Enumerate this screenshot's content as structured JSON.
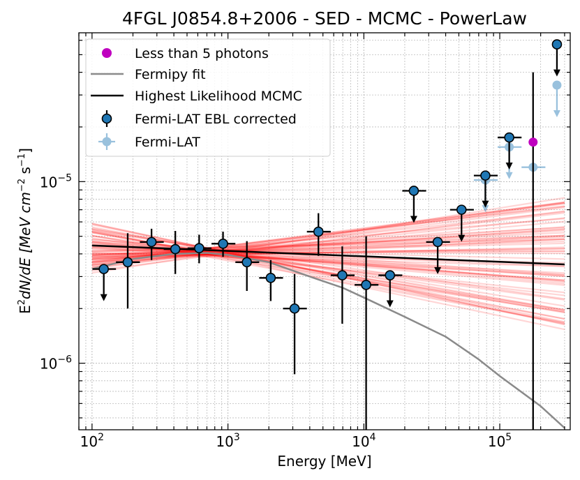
{
  "chart_data": {
    "type": "scatter",
    "title": "4FGL J0854.8+2006 - SED - MCMC - PowerLaw",
    "xlabel": "Energy [MeV]",
    "ylabel_main": "E",
    "ylabel_sup1": "2",
    "ylabel_mid": "dN/dE [MeV cm",
    "ylabel_sup2": "−2",
    "ylabel_mid2": " s",
    "ylabel_sup3": "−1",
    "ylabel_end": "]",
    "xscale": "log",
    "yscale": "log",
    "xlim": [
      80,
      330000
    ],
    "ylim": [
      4.3e-07,
      6.6e-05
    ],
    "x_ticks": [
      {
        "value": 100,
        "base": "10",
        "exp": "2"
      },
      {
        "value": 1000,
        "base": "10",
        "exp": "3"
      },
      {
        "value": 10000,
        "base": "10",
        "exp": "4"
      },
      {
        "value": 100000,
        "base": "10",
        "exp": "5"
      }
    ],
    "y_ticks": [
      {
        "value": 1e-06,
        "base": "10",
        "exp": "−6"
      },
      {
        "value": 1e-05,
        "base": "10",
        "exp": "−5"
      }
    ],
    "grid": true,
    "legend": {
      "position": "top-left",
      "entries": [
        {
          "label": "Less than 5 photons",
          "kind": "dot",
          "color": "#bf00bf"
        },
        {
          "label": "Fermipy fit",
          "kind": "line",
          "color": "#8a8a8a"
        },
        {
          "label": "Highest Likelihood MCMC",
          "kind": "line",
          "color": "#000000"
        },
        {
          "label": "Fermi-LAT EBL corrected",
          "kind": "errpoint",
          "color": "#1f77b4"
        },
        {
          "label": "Fermi-LAT",
          "kind": "errpoint_faded",
          "color": "#1f77b4"
        }
      ]
    },
    "colors": {
      "point_fill": "#1f77b4",
      "faded_point": "#7fb2dc",
      "mcmc_samples": "#ff0000",
      "fermipy": "#8a8a8a",
      "best_fit": "#000000",
      "low_photons": "#bf00bf"
    },
    "series": [
      {
        "name": "Fermi-LAT EBL corrected",
        "points": [
          {
            "x": 122,
            "y": 3.3e-06,
            "xlo": 101,
            "xhi": 150,
            "upper_limit": true
          },
          {
            "x": 183,
            "y": 3.6e-06,
            "xlo": 150,
            "xhi": 225,
            "ylo": 2e-06,
            "yhi": 5.2e-06
          },
          {
            "x": 274,
            "y": 4.65e-06,
            "xlo": 225,
            "xhi": 337,
            "ylo": 3.7e-06,
            "yhi": 5.5e-06
          },
          {
            "x": 410,
            "y": 4.25e-06,
            "xlo": 337,
            "xhi": 505,
            "ylo": 3.1e-06,
            "yhi": 5.35e-06
          },
          {
            "x": 614,
            "y": 4.3e-06,
            "xlo": 505,
            "xhi": 757,
            "ylo": 3.55e-06,
            "yhi": 5.1e-06
          },
          {
            "x": 920,
            "y": 4.55e-06,
            "xlo": 757,
            "xhi": 1134,
            "ylo": 3.85e-06,
            "yhi": 5.3e-06
          },
          {
            "x": 1378,
            "y": 3.6e-06,
            "xlo": 1134,
            "xhi": 1698,
            "ylo": 2.5e-06,
            "yhi": 4.7e-06
          },
          {
            "x": 2064,
            "y": 2.95e-06,
            "xlo": 1698,
            "xhi": 2543,
            "ylo": 2.2e-06,
            "yhi": 3.7e-06
          },
          {
            "x": 3092,
            "y": 2e-06,
            "xlo": 2543,
            "xhi": 3810,
            "ylo": 8.7e-07,
            "yhi": 3.1e-06
          },
          {
            "x": 4632,
            "y": 5.3e-06,
            "xlo": 3810,
            "xhi": 5707,
            "ylo": 3.9e-06,
            "yhi": 6.7e-06
          },
          {
            "x": 6938,
            "y": 3.05e-06,
            "xlo": 5707,
            "xhi": 8548,
            "ylo": 1.65e-06,
            "yhi": 4.4e-06
          },
          {
            "x": 10393,
            "y": 2.7e-06,
            "xlo": 8548,
            "xhi": 12804,
            "ylo": 4.3e-07,
            "yhi": 5e-06
          },
          {
            "x": 15568,
            "y": 3.05e-06,
            "xlo": 12804,
            "xhi": 19179,
            "upper_limit": true
          },
          {
            "x": 23320,
            "y": 8.9e-06,
            "xlo": 19179,
            "xhi": 28730,
            "upper_limit": true
          },
          {
            "x": 34932,
            "y": 4.65e-06,
            "xlo": 28730,
            "xhi": 43036,
            "upper_limit": true
          },
          {
            "x": 52325,
            "y": 7e-06,
            "xlo": 43036,
            "xhi": 64465,
            "upper_limit": true
          },
          {
            "x": 78380,
            "y": 1.08e-05,
            "xlo": 64465,
            "xhi": 96564,
            "upper_limit": true
          },
          {
            "x": 117408,
            "y": 1.75e-05,
            "xlo": 96564,
            "xhi": 144647,
            "upper_limit": true
          },
          {
            "x": 175868,
            "y": 1.65e-05,
            "ylo": 4.3e-07,
            "yhi": 4e-05,
            "low_photons": true
          },
          {
            "x": 263440,
            "y": 5.7e-05,
            "upper_limit": true
          }
        ]
      },
      {
        "name": "Fermi-LAT",
        "points": [
          {
            "x": 78380,
            "y": 1.02e-05,
            "xlo": 64465,
            "xhi": 96564,
            "upper_limit": true
          },
          {
            "x": 117408,
            "y": 1.55e-05,
            "xlo": 96564,
            "xhi": 144647,
            "upper_limit": true
          },
          {
            "x": 175868,
            "y": 1.2e-05,
            "xlo": 144647,
            "xhi": 216680
          },
          {
            "x": 263440,
            "y": 3.4e-05,
            "upper_limit": true
          }
        ]
      },
      {
        "name": "Fermipy fit",
        "x": [
          100,
          200,
          400,
          700,
          1000,
          2000,
          4000,
          7000,
          10000,
          20000,
          40000,
          70000,
          100000,
          200000,
          300000
        ],
        "y": [
          3.3e-06,
          3.75e-06,
          4e-06,
          4.05e-06,
          3.95e-06,
          3.6e-06,
          3e-06,
          2.6e-06,
          2.3e-06,
          1.8e-06,
          1.4e-06,
          1.05e-06,
          8.5e-07,
          5.8e-07,
          4.4e-07
        ]
      },
      {
        "name": "Highest Likelihood MCMC",
        "x": [
          100,
          300000
        ],
        "y": [
          4.45e-06,
          3.5e-06
        ]
      }
    ],
    "mcmc_samples": {
      "pivot_energy": 700,
      "pivot_flux": 4.1e-06,
      "index_min": -0.16,
      "index_max": 0.12,
      "count": 70
    }
  }
}
